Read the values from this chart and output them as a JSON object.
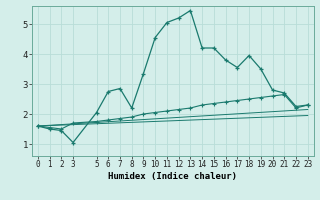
{
  "xlabel": "Humidex (Indice chaleur)",
  "ylabel": "",
  "bg_color": "#d4eeea",
  "grid_color": "#b8ddd8",
  "line_color": "#1a7a6e",
  "xlim": [
    -0.5,
    23.5
  ],
  "ylim": [
    0.6,
    5.6
  ],
  "xticks": [
    0,
    1,
    2,
    3,
    5,
    6,
    7,
    8,
    9,
    10,
    11,
    12,
    13,
    14,
    15,
    16,
    17,
    18,
    19,
    20,
    21,
    22,
    23
  ],
  "yticks": [
    1,
    2,
    3,
    4,
    5
  ],
  "line1_x": [
    0,
    1,
    2,
    3,
    5,
    6,
    7,
    8,
    9,
    10,
    11,
    12,
    13,
    14,
    15,
    16,
    17,
    18,
    19,
    20,
    21,
    22,
    23
  ],
  "line1_y": [
    1.6,
    1.5,
    1.45,
    1.05,
    2.05,
    2.75,
    2.85,
    2.2,
    3.35,
    4.55,
    5.05,
    5.2,
    5.45,
    4.2,
    4.2,
    3.8,
    3.55,
    3.95,
    3.5,
    2.8,
    2.7,
    2.25,
    2.3
  ],
  "line2_x": [
    0,
    1,
    2,
    3,
    5,
    6,
    7,
    8,
    9,
    10,
    11,
    12,
    13,
    14,
    15,
    16,
    17,
    18,
    19,
    20,
    21,
    22,
    23
  ],
  "line2_y": [
    1.6,
    1.55,
    1.5,
    1.7,
    1.75,
    1.8,
    1.85,
    1.9,
    2.0,
    2.05,
    2.1,
    2.15,
    2.2,
    2.3,
    2.35,
    2.4,
    2.45,
    2.5,
    2.55,
    2.6,
    2.65,
    2.2,
    2.3
  ],
  "line3_x": [
    0,
    23
  ],
  "line3_y": [
    1.6,
    2.15
  ],
  "line4_x": [
    0,
    23
  ],
  "line4_y": [
    1.6,
    1.95
  ],
  "tick_fontsize": 5.5,
  "xlabel_fontsize": 6.5
}
